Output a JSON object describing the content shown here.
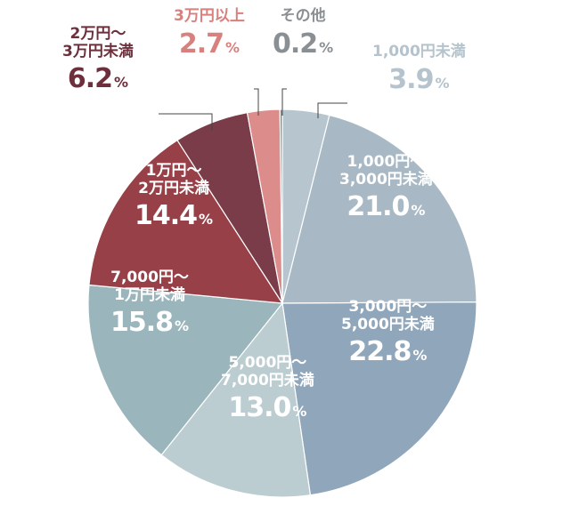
{
  "chart_data": {
    "type": "pie",
    "title": "",
    "unit": "%",
    "slices": [
      {
        "label": "1,000円未満",
        "value": 3.9,
        "color": "#b7c5cf",
        "text_color": "#b5c3cd"
      },
      {
        "label": "1,000円〜\n3,000円未満",
        "value": 21.0,
        "color": "#a8b9c5"
      },
      {
        "label": "3,000円〜\n5,000円未満",
        "value": 22.8,
        "color": "#90a6ba"
      },
      {
        "label": "5,000円〜\n7,000円未満",
        "value": 13.0,
        "color": "#bccdd2"
      },
      {
        "label": "7,000円〜\n1万円未満",
        "value": 15.8,
        "color": "#9ab5bb"
      },
      {
        "label": "1万円〜\n2万円未満",
        "value": 14.4,
        "color": "#974048"
      },
      {
        "label": "2万円〜\n3万円未満",
        "value": 6.2,
        "color": "#7a3c48",
        "text_color": "#6e2f3c"
      },
      {
        "label": "3万円以上",
        "value": 2.7,
        "color": "#db8c8b",
        "text_color": "#d8807e"
      },
      {
        "label": "その他",
        "value": 0.2,
        "color": "#7d8c8c",
        "text_color": "#8a8f93"
      }
    ]
  }
}
